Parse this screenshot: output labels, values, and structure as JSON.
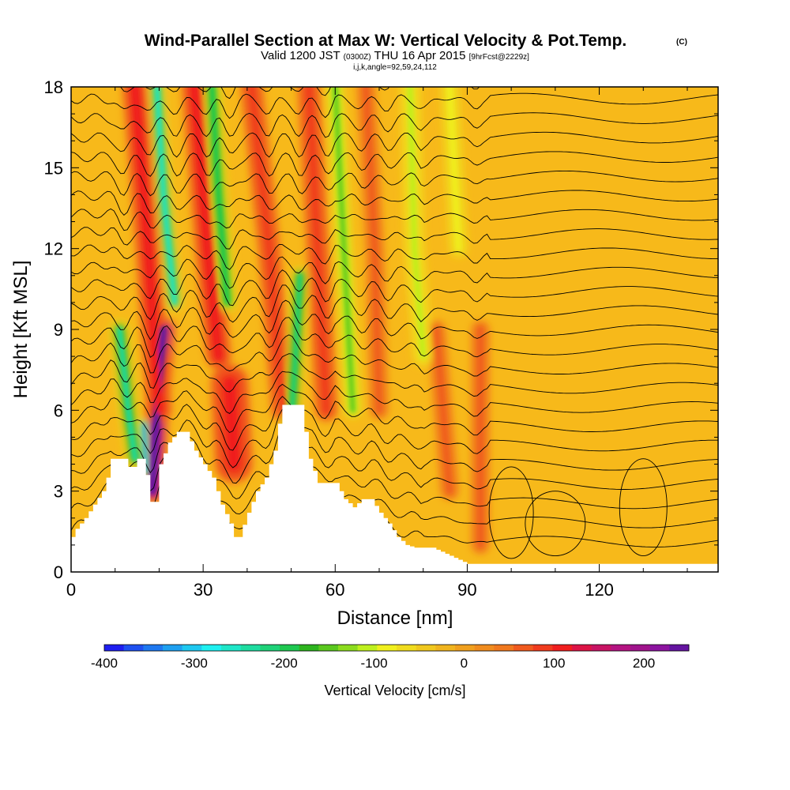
{
  "header": {
    "title_main": "Wind-Parallel Section at Max W: Vertical Velocity & Pot.Temp.",
    "copyright": "(C)",
    "subtitle_a": "Valid 1200 JST",
    "subtitle_b": "(0300Z)",
    "subtitle_c": "THU 16 Apr 2015",
    "subtitle_d": "[9hrFcst@2229z]",
    "indices": "i,j,k,angle=92,59,24,112"
  },
  "chart_data": {
    "type": "heatmap",
    "xlabel": "Distance [nm]",
    "ylabel": "Height [Kft MSL]",
    "xlim": [
      0,
      147
    ],
    "ylim": [
      0,
      18
    ],
    "x_ticks": [
      0,
      30,
      60,
      90,
      120
    ],
    "y_ticks": [
      0,
      3,
      6,
      9,
      12,
      15,
      18
    ],
    "terrain_kft": [
      [
        0,
        1.3
      ],
      [
        1,
        1.6
      ],
      [
        3,
        2.0
      ],
      [
        5,
        2.5
      ],
      [
        7,
        3.0
      ],
      [
        8,
        3.5
      ],
      [
        9,
        4.2
      ],
      [
        12,
        4.2
      ],
      [
        13,
        3.9
      ],
      [
        14,
        3.9
      ],
      [
        15,
        4.2
      ],
      [
        16,
        4.2
      ],
      [
        17,
        3.6
      ],
      [
        18,
        2.6
      ],
      [
        19,
        2.6
      ],
      [
        20,
        4.0
      ],
      [
        21,
        4.4
      ],
      [
        22,
        4.8
      ],
      [
        24,
        5.2
      ],
      [
        26,
        5.2
      ],
      [
        28,
        4.5
      ],
      [
        30,
        4.0
      ],
      [
        32,
        3.5
      ],
      [
        34,
        2.5
      ],
      [
        36,
        1.8
      ],
      [
        37,
        1.3
      ],
      [
        38,
        1.3
      ],
      [
        40,
        2.2
      ],
      [
        42,
        3.0
      ],
      [
        44,
        3.5
      ],
      [
        46,
        4.5
      ],
      [
        47,
        5.5
      ],
      [
        48,
        6.2
      ],
      [
        52,
        6.2
      ],
      [
        53,
        5.2
      ],
      [
        54,
        4.2
      ],
      [
        56,
        3.3
      ],
      [
        60,
        3.3
      ],
      [
        62,
        2.7
      ],
      [
        64,
        2.4
      ],
      [
        66,
        2.7
      ],
      [
        68,
        2.7
      ],
      [
        70,
        2.2
      ],
      [
        72,
        1.8
      ],
      [
        74,
        1.3
      ],
      [
        76,
        1.0
      ],
      [
        78,
        0.9
      ],
      [
        82,
        0.9
      ],
      [
        86,
        0.6
      ],
      [
        90,
        0.3
      ],
      [
        96,
        0.3
      ],
      [
        108,
        0.3
      ],
      [
        120,
        0.3
      ],
      [
        147,
        0.3
      ]
    ],
    "colorbar": {
      "label": "Vertical Velocity [cm/s]",
      "ticks": [
        -400,
        -300,
        -200,
        -100,
        0,
        100,
        200
      ],
      "range": [
        -400,
        250
      ],
      "colors": [
        "#1e1ef0",
        "#1e50f0",
        "#1e78f0",
        "#1ea0f0",
        "#1ec8f0",
        "#1ef0f0",
        "#1ee6c8",
        "#1edca0",
        "#1ed278",
        "#1ec850",
        "#2db41e",
        "#5ac81e",
        "#8cdc1e",
        "#bef01e",
        "#f0f01e",
        "#f0dc1e",
        "#f0c81e",
        "#f0b41e",
        "#f0a01e",
        "#f08c1e",
        "#f0781e",
        "#f05a1e",
        "#f03c1e",
        "#f01e1e",
        "#dc1446",
        "#c81464",
        "#b41482",
        "#a0148c",
        "#8c14a0",
        "#6414a0"
      ]
    },
    "updraft_bands": [
      {
        "x": [
          21,
          19.5,
          18.5
        ],
        "y": [
          9,
          6,
          3
        ],
        "w": 2.2,
        "value": 230
      },
      {
        "x": [
          14.5,
          17.5,
          20
        ],
        "y": [
          18,
          12,
          6
        ],
        "w": 2.3,
        "value": 110
      },
      {
        "x": [
          28,
          31,
          33.5
        ],
        "y": [
          18,
          12,
          8
        ],
        "w": 2.3,
        "value": 110
      },
      {
        "x": [
          36,
          37
        ],
        "y": [
          7,
          4
        ],
        "w": 3.5,
        "value": 110
      },
      {
        "x": [
          41,
          45,
          48
        ],
        "y": [
          18,
          12,
          6
        ],
        "w": 2.0,
        "value": 95
      },
      {
        "x": [
          54,
          56,
          58
        ],
        "y": [
          18,
          12,
          6
        ],
        "w": 2.0,
        "value": 95
      },
      {
        "x": [
          67,
          69,
          70
        ],
        "y": [
          18,
          12,
          6
        ],
        "w": 1.5,
        "value": 65
      },
      {
        "x": [
          83,
          86
        ],
        "y": [
          9,
          3
        ],
        "w": 1.5,
        "value": 60
      },
      {
        "x": [
          93,
          93
        ],
        "y": [
          9,
          1
        ],
        "w": 1.5,
        "value": 60
      }
    ],
    "downdraft_bands": [
      {
        "x": [
          11,
          13,
          14.5
        ],
        "y": [
          9,
          6,
          4.2
        ],
        "w": 1.8,
        "value": -230
      },
      {
        "x": [
          16.5,
          17
        ],
        "y": [
          5.5,
          3.7
        ],
        "w": 0.8,
        "value": -320
      },
      {
        "x": [
          19.5,
          21,
          23.5
        ],
        "y": [
          18,
          14,
          10
        ],
        "w": 1.5,
        "value": -250
      },
      {
        "x": [
          32,
          33.5,
          35.5
        ],
        "y": [
          18,
          14,
          10
        ],
        "w": 1.7,
        "value": -200
      },
      {
        "x": [
          52,
          51,
          50
        ],
        "y": [
          11,
          8,
          5.5
        ],
        "w": 1.6,
        "value": -220
      },
      {
        "x": [
          60,
          62,
          64
        ],
        "y": [
          18,
          12,
          6
        ],
        "w": 1.5,
        "value": -150
      },
      {
        "x": [
          77,
          78,
          80
        ],
        "y": [
          18,
          12,
          8
        ],
        "w": 1.8,
        "value": -100
      },
      {
        "x": [
          86,
          88
        ],
        "y": [
          18,
          12
        ],
        "w": 1.6,
        "value": -80
      }
    ]
  }
}
